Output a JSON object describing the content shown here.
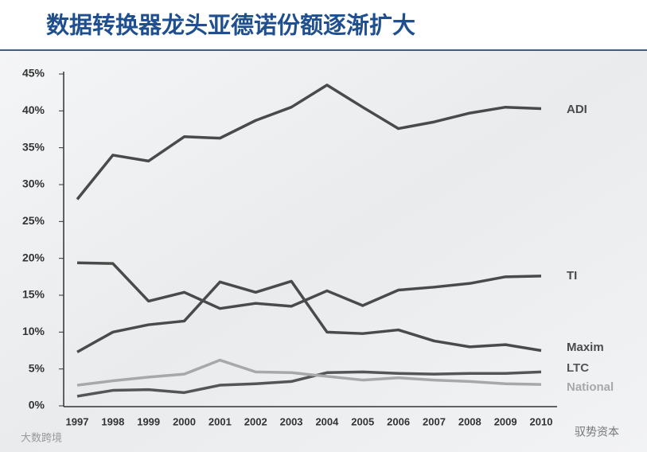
{
  "chart_data": {
    "type": "line",
    "title": "数据转换器龙头亚德诺份额逐渐扩大",
    "categories": [
      "1997",
      "1998",
      "1999",
      "2000",
      "2001",
      "2002",
      "2003",
      "2004",
      "2005",
      "2006",
      "2007",
      "2008",
      "2009",
      "2010"
    ],
    "series": [
      {
        "name": "ADI",
        "color": "#4a4a4a",
        "values": [
          28,
          34,
          33.2,
          36.5,
          36.3,
          38.7,
          40.5,
          43.5,
          40.5,
          37.6,
          38.5,
          39.7,
          40.5,
          40.3
        ]
      },
      {
        "name": "TI",
        "color": "#4a4a4a",
        "values": [
          19.4,
          19.3,
          14.2,
          15.4,
          13.2,
          13.9,
          13.5,
          15.6,
          13.6,
          15.7,
          16.1,
          16.6,
          17.5,
          17.6
        ]
      },
      {
        "name": "Maxim",
        "color": "#4a4a4a",
        "values": [
          7.3,
          10,
          11,
          11.5,
          16.8,
          15.4,
          16.9,
          10,
          9.8,
          10.3,
          8.8,
          8,
          8.3,
          7.5
        ]
      },
      {
        "name": "LTC",
        "color": "#555555",
        "values": [
          1.3,
          2.1,
          2.2,
          1.8,
          2.8,
          3,
          3.3,
          4.5,
          4.6,
          4.4,
          4.3,
          4.4,
          4.4,
          4.6
        ]
      },
      {
        "name": "National",
        "color": "#a8a8a8",
        "values": [
          2.8,
          3.4,
          3.9,
          4.3,
          6.2,
          4.6,
          4.5,
          4,
          3.5,
          3.8,
          3.5,
          3.3,
          3,
          2.9
        ]
      }
    ],
    "ylim": [
      0,
      45
    ],
    "yticks": [
      {
        "value": 0,
        "label": "0%"
      },
      {
        "value": 5,
        "label": "5%"
      },
      {
        "value": 10,
        "label": "10%"
      },
      {
        "value": 15,
        "label": "15%"
      },
      {
        "value": 20,
        "label": "20%"
      },
      {
        "value": 25,
        "label": "25%"
      },
      {
        "value": 30,
        "label": "30%"
      },
      {
        "value": 35,
        "label": "35%"
      },
      {
        "value": 40,
        "label": "40%"
      },
      {
        "value": 45,
        "label": "45%"
      }
    ],
    "grid": false,
    "watermarks": [
      "大数跨境",
      "驭势资本"
    ]
  }
}
